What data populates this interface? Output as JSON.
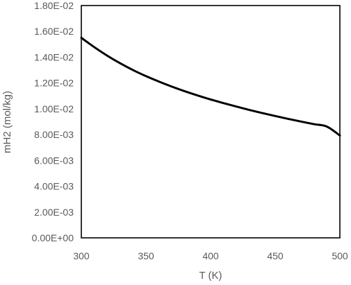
{
  "chart_data": {
    "type": "line",
    "xlabel": "T (K)",
    "ylabel": "mH2 (mol/kg)",
    "xlim": [
      300,
      500
    ],
    "ylim": [
      0,
      0.018
    ],
    "x_ticks": [
      "300",
      "350",
      "400",
      "450",
      "500"
    ],
    "y_ticks": [
      "0.00E+00",
      "2.00E-03",
      "4.00E-03",
      "6.00E-03",
      "8.00E-03",
      "1.00E-02",
      "1.20E-02",
      "1.40E-02",
      "1.60E-02",
      "1.80E-02"
    ],
    "grid": false,
    "line_color": "#000000",
    "series": [
      {
        "x": [
          300,
          310,
          320,
          330,
          340,
          350,
          360,
          370,
          380,
          390,
          400,
          410,
          420,
          430,
          440,
          450,
          460,
          470,
          480,
          490,
          500
        ],
        "values": [
          0.0155,
          0.01478,
          0.01412,
          0.01353,
          0.013,
          0.01253,
          0.01211,
          0.01172,
          0.01136,
          0.01103,
          0.01072,
          0.01044,
          0.01017,
          0.00991,
          0.00967,
          0.00944,
          0.00922,
          0.00901,
          0.00881,
          0.00862,
          0.00793
        ]
      }
    ]
  }
}
